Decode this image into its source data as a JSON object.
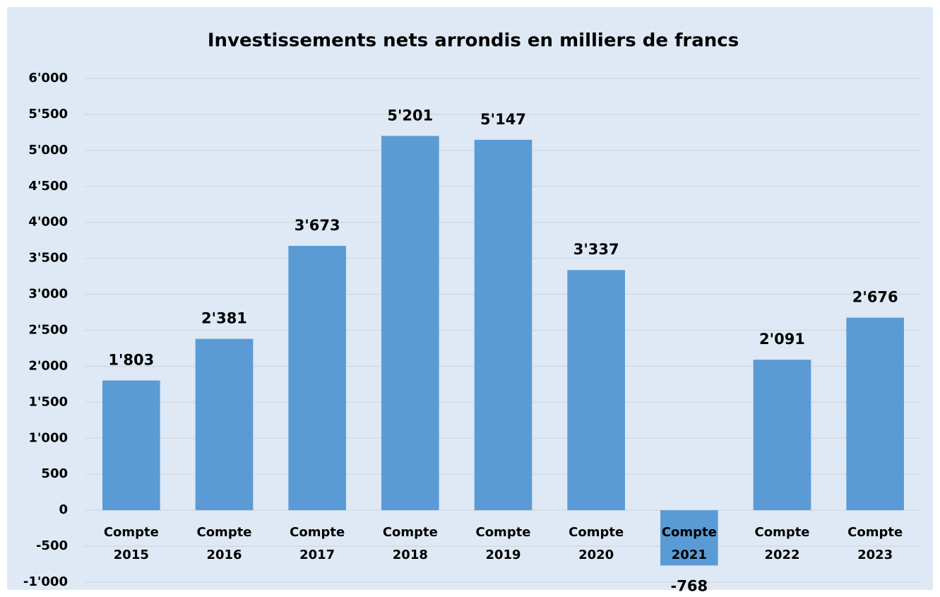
{
  "chart_data": {
    "type": "bar",
    "title": "Investissements nets arrondis en milliers de francs",
    "categories": [
      "Compte 2015",
      "Compte 2016",
      "Compte 2017",
      "Compte 2018",
      "Compte 2019",
      "Compte 2020",
      "Compte 2021",
      "Compte 2022",
      "Compte 2023"
    ],
    "values": [
      1803,
      2381,
      3673,
      5201,
      5147,
      3337,
      -768,
      2091,
      2676
    ],
    "value_labels": [
      "1'803",
      "2'381",
      "3'673",
      "5'201",
      "5'147",
      "3'337",
      "-768",
      "2'091",
      "2'676"
    ],
    "color": "#5b9bd5",
    "ylim": [
      -1000,
      6000
    ],
    "yticks": [
      {
        "value": -1000,
        "label": "-1'000"
      },
      -500,
      0,
      500,
      {
        "value": 1000,
        "label": "1'000"
      },
      {
        "value": 1500,
        "label": "1'500"
      },
      {
        "value": 2000,
        "label": "2'000"
      },
      {
        "value": 2500,
        "label": "2'500"
      },
      {
        "value": 3000,
        "label": "3'000"
      },
      {
        "value": 3500,
        "label": "3'500"
      },
      {
        "value": 4000,
        "label": "4'000"
      },
      {
        "value": 4500,
        "label": "4'500"
      },
      {
        "value": 5000,
        "label": "5'000"
      },
      {
        "value": 5500,
        "label": "5'500"
      },
      {
        "value": 6000,
        "label": "6'000"
      }
    ],
    "grid": true
  }
}
